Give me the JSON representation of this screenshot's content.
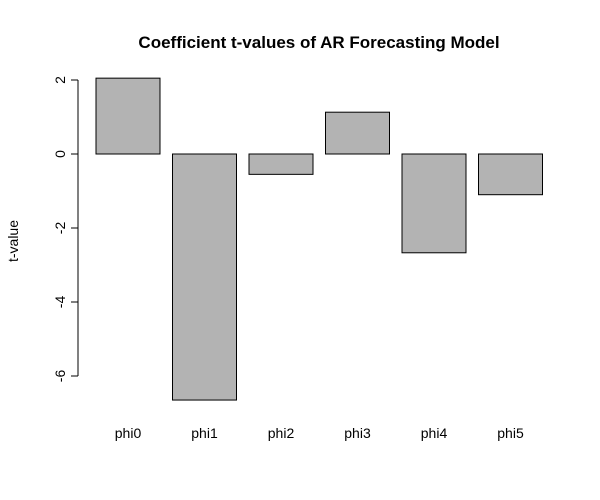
{
  "chart_data": {
    "type": "bar",
    "title": "Coefficient t-values of AR Forecasting Model",
    "xlabel": "",
    "ylabel": "t-value",
    "categories": [
      "phi0",
      "phi1",
      "phi2",
      "phi3",
      "phi4",
      "phi5"
    ],
    "values": [
      2.05,
      -6.65,
      -0.55,
      1.13,
      -2.67,
      -1.1
    ],
    "ylim": [
      -7,
      2.4
    ],
    "yticks": [
      -6,
      -4,
      -2,
      0,
      2
    ],
    "grid": false,
    "legend": "none",
    "bar_color": "#b3b3b3",
    "bar_border_color": "#000000"
  }
}
